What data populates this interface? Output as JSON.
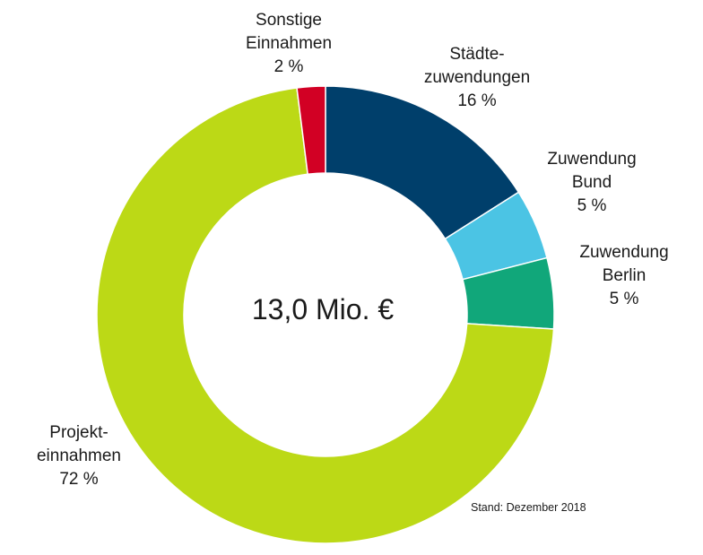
{
  "chart_data": {
    "type": "pie",
    "style": "donut",
    "center_label": "13,0 Mio. €",
    "footnote": "Stand: Dezember 2018",
    "slices": [
      {
        "name": "Städtezuwendungen",
        "label_lines": [
          "Städte-",
          "zuwendungen"
        ],
        "percent_label": "16 %",
        "value": 16,
        "color": "#003f6b"
      },
      {
        "name": "Zuwendung Bund",
        "label_lines": [
          "Zuwendung",
          "Bund"
        ],
        "percent_label": "5 %",
        "value": 5,
        "color": "#4bc4e4"
      },
      {
        "name": "Zuwendung Berlin",
        "label_lines": [
          "Zuwendung",
          "Berlin"
        ],
        "percent_label": "5 %",
        "value": 5,
        "color": "#11a77a"
      },
      {
        "name": "Projekteinnahmen",
        "label_lines": [
          "Projekt-",
          "einnahmen"
        ],
        "percent_label": "72 %",
        "value": 72,
        "color": "#bcd916"
      },
      {
        "name": "Sonstige Einnahmen",
        "label_lines": [
          "Sonstige",
          "Einnahmen"
        ],
        "percent_label": "2 %",
        "value": 2,
        "color": "#d20024"
      }
    ]
  }
}
